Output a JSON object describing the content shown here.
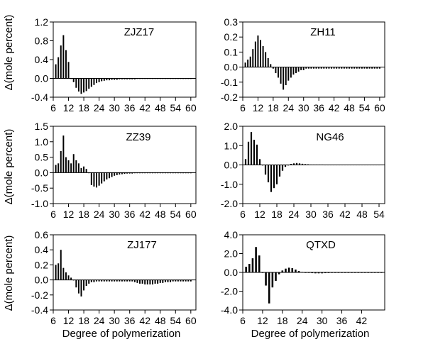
{
  "figure": {
    "ylabel": "Δ(mole percent)",
    "xlabel": "Degree of polymerization"
  },
  "chart_data": [
    {
      "type": "bar",
      "title": "ZJZ17",
      "xlabel": "",
      "ylabel": "Δ(mole percent)",
      "xlim": [
        6,
        62
      ],
      "ylim": [
        -0.4,
        1.2
      ],
      "xticks": [
        6,
        12,
        18,
        24,
        30,
        36,
        42,
        48,
        54,
        60
      ],
      "yticks": [
        -0.4,
        0.0,
        0.4,
        0.8,
        1.2
      ],
      "ytick_labels": [
        "-0.4",
        "0.0",
        "0.4",
        "0.8",
        "1.2"
      ],
      "x_start": 7,
      "values": [
        0.3,
        0.45,
        0.7,
        0.92,
        0.6,
        0.35,
        0.0,
        -0.08,
        -0.2,
        -0.28,
        -0.33,
        -0.3,
        -0.27,
        -0.22,
        -0.18,
        -0.14,
        -0.1,
        -0.08,
        -0.06,
        -0.05,
        -0.04,
        -0.04,
        -0.03,
        -0.03,
        -0.03,
        -0.02,
        -0.02,
        -0.02,
        -0.02,
        -0.02,
        -0.02,
        -0.02,
        -0.01,
        -0.01,
        -0.01,
        -0.01,
        -0.01,
        -0.01,
        -0.01,
        -0.01,
        -0.01,
        -0.01,
        -0.01,
        -0.01,
        -0.01,
        -0.01,
        -0.01,
        -0.01,
        -0.01,
        -0.01,
        -0.01,
        -0.01,
        -0.01,
        -0.01
      ]
    },
    {
      "type": "bar",
      "title": "ZH11",
      "xlabel": "",
      "ylabel": "",
      "xlim": [
        6,
        62
      ],
      "ylim": [
        -0.2,
        0.3
      ],
      "xticks": [
        6,
        12,
        18,
        24,
        30,
        36,
        42,
        48,
        54,
        60
      ],
      "yticks": [
        -0.2,
        -0.1,
        0.0,
        0.1,
        0.2,
        0.3
      ],
      "ytick_labels": [
        "-0.2",
        "-0.1",
        "0.0",
        "0.1",
        "0.2",
        "0.3"
      ],
      "x_start": 7,
      "values": [
        0.03,
        0.05,
        0.07,
        0.12,
        0.17,
        0.21,
        0.18,
        0.14,
        0.1,
        0.06,
        0.02,
        -0.01,
        -0.04,
        -0.07,
        -0.11,
        -0.15,
        -0.12,
        -0.09,
        -0.07,
        -0.05,
        -0.04,
        -0.03,
        -0.02,
        -0.02,
        -0.01,
        -0.01,
        -0.01,
        -0.01,
        -0.01,
        -0.01,
        -0.01,
        -0.01,
        -0.01,
        -0.01,
        -0.01,
        -0.01,
        -0.01,
        -0.01,
        -0.01,
        -0.01,
        -0.01,
        -0.01,
        -0.01,
        -0.01,
        -0.01,
        -0.01,
        -0.01,
        -0.01,
        -0.01,
        -0.01,
        -0.01,
        -0.01,
        -0.01,
        -0.01
      ]
    },
    {
      "type": "bar",
      "title": "ZZ39",
      "xlabel": "",
      "ylabel": "Δ(mole percent)",
      "xlim": [
        6,
        62
      ],
      "ylim": [
        -1.0,
        1.5
      ],
      "xticks": [
        6,
        12,
        18,
        24,
        30,
        36,
        42,
        48,
        54,
        60
      ],
      "yticks": [
        -1.0,
        -0.5,
        0.0,
        0.5,
        1.0,
        1.5
      ],
      "ytick_labels": [
        "-1.0",
        "-0.5",
        "0.0",
        "0.5",
        "1.0",
        "1.5"
      ],
      "x_start": 7,
      "values": [
        0.25,
        0.3,
        0.7,
        1.2,
        0.5,
        0.4,
        0.3,
        0.6,
        0.4,
        0.3,
        0.15,
        0.2,
        0.12,
        0.0,
        -0.4,
        -0.45,
        -0.48,
        -0.42,
        -0.35,
        -0.28,
        -0.22,
        -0.18,
        -0.14,
        -0.1,
        -0.08,
        -0.06,
        -0.05,
        -0.04,
        -0.03,
        -0.03,
        -0.03,
        -0.02,
        -0.02,
        -0.02,
        -0.02,
        -0.02,
        -0.02,
        -0.02,
        -0.02,
        -0.02,
        -0.02,
        -0.02,
        -0.02,
        -0.02,
        -0.02,
        -0.02,
        -0.02,
        -0.02,
        -0.02,
        -0.02,
        -0.02,
        -0.02,
        -0.02,
        -0.02
      ]
    },
    {
      "type": "bar",
      "title": "NG46",
      "xlabel": "",
      "ylabel": "",
      "xlim": [
        6,
        56
      ],
      "ylim": [
        -2.0,
        2.0
      ],
      "xticks": [
        6,
        12,
        18,
        24,
        30,
        36,
        42,
        48,
        54
      ],
      "yticks": [
        -2.0,
        -1.0,
        0.0,
        1.0,
        2.0
      ],
      "ytick_labels": [
        "-2.0",
        "-1.0",
        "0.0",
        "1.0",
        "2.0"
      ],
      "x_start": 7,
      "values": [
        0.3,
        1.2,
        1.7,
        1.3,
        1.05,
        0.3,
        0.0,
        -0.5,
        -0.9,
        -1.4,
        -1.2,
        -1.0,
        -0.6,
        -0.3,
        -0.1,
        0.0,
        0.05,
        0.08,
        0.1,
        0.08,
        0.06,
        0.04,
        0.03,
        0.02,
        0.02,
        0.02,
        0.02,
        0.02,
        0.01,
        0.01,
        0.01,
        0.01,
        0.01,
        0.01,
        0.01,
        0.01,
        0.01,
        0.01,
        0.01,
        0.01,
        0.01,
        0.01,
        0.01,
        0.01,
        0.01,
        0.01,
        0.01,
        0.01
      ]
    },
    {
      "type": "bar",
      "title": "ZJ177",
      "xlabel": "Degree of polymerization",
      "ylabel": "Δ(mole percent)",
      "xlim": [
        6,
        62
      ],
      "ylim": [
        -0.4,
        0.6
      ],
      "xticks": [
        6,
        12,
        18,
        24,
        30,
        36,
        42,
        48,
        54,
        60
      ],
      "yticks": [
        -0.4,
        -0.2,
        0.0,
        0.2,
        0.4,
        0.6
      ],
      "ytick_labels": [
        "-0.4",
        "-0.2",
        "0.0",
        "0.2",
        "0.4",
        "0.6"
      ],
      "x_start": 7,
      "values": [
        0.2,
        0.22,
        0.4,
        0.16,
        0.1,
        0.06,
        0.03,
        0.0,
        -0.1,
        -0.18,
        -0.22,
        -0.14,
        -0.08,
        -0.05,
        -0.03,
        -0.03,
        -0.02,
        -0.02,
        -0.02,
        -0.02,
        -0.02,
        -0.02,
        -0.02,
        -0.02,
        -0.02,
        -0.02,
        -0.02,
        -0.02,
        -0.02,
        -0.02,
        -0.02,
        -0.03,
        -0.04,
        -0.05,
        -0.05,
        -0.06,
        -0.06,
        -0.06,
        -0.06,
        -0.05,
        -0.05,
        -0.04,
        -0.04,
        -0.03,
        -0.03,
        -0.03,
        -0.02,
        -0.02,
        -0.02,
        -0.02,
        -0.02,
        -0.02,
        -0.02,
        -0.02
      ]
    },
    {
      "type": "bar",
      "title": "QTXD",
      "xlabel": "Degree of polymerization",
      "ylabel": "",
      "xlim": [
        6,
        49
      ],
      "ylim": [
        -4.0,
        4.0
      ],
      "xticks": [
        6,
        12,
        18,
        24,
        30,
        36,
        42
      ],
      "yticks": [
        -4.0,
        -2.0,
        0.0,
        2.0,
        4.0
      ],
      "ytick_labels": [
        "-4.0",
        "-2.0",
        "0.0",
        "2.0",
        "4.0"
      ],
      "x_start": 7,
      "values": [
        0.6,
        0.9,
        1.5,
        2.7,
        1.8,
        0.0,
        -1.4,
        -3.3,
        -1.6,
        -0.9,
        -0.2,
        0.2,
        0.4,
        0.5,
        0.45,
        0.3,
        0.15,
        0.05,
        0.0,
        -0.05,
        -0.08,
        -0.1,
        -0.1,
        -0.1,
        -0.08,
        -0.07,
        -0.06,
        -0.06,
        -0.05,
        -0.05,
        -0.05,
        -0.05,
        -0.05,
        -0.05,
        -0.05,
        -0.05,
        -0.05,
        -0.05,
        -0.05,
        -0.05,
        -0.05,
        -0.05
      ]
    }
  ]
}
